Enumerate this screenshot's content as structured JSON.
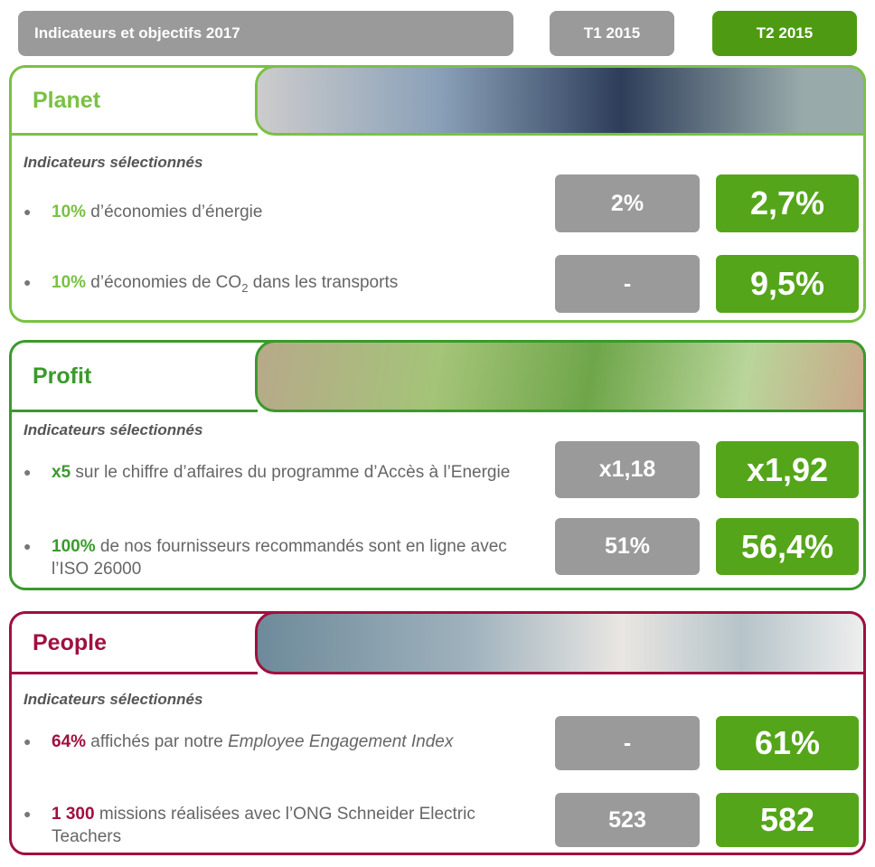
{
  "header": {
    "title": "Indicateurs et objectifs 2017",
    "col1": "T1 2015",
    "col2": "T2 2015"
  },
  "sections": [
    {
      "title": "Planet",
      "color": "#7ac143",
      "subtitle": "Indicateurs sélectionnés",
      "items": [
        {
          "parts": [
            {
              "text": "10%",
              "kind": "highlight"
            },
            {
              "text": " d’économies d’énergie"
            }
          ],
          "t1": "2%",
          "t2": "2,7%"
        },
        {
          "parts": [
            {
              "text": "10%",
              "kind": "highlight"
            },
            {
              "text": " d’économies de CO"
            },
            {
              "text": "2",
              "kind": "sub"
            },
            {
              "text": " dans les transports"
            }
          ],
          "t1": "-",
          "t2": "9,5%"
        }
      ]
    },
    {
      "title": "Profit",
      "color": "#3a9a2c",
      "subtitle": "Indicateurs sélectionnés",
      "items": [
        {
          "parts": [
            {
              "text": "x5",
              "kind": "highlight"
            },
            {
              "text": " sur le chiffre d’affaires du programme d’Accès à l’Energie"
            }
          ],
          "t1": "x1,18",
          "t2": "x1,92"
        },
        {
          "parts": [
            {
              "text": "100%",
              "kind": "highlight"
            },
            {
              "text": " de nos fournisseurs recommandés sont en ligne avec l’ISO 26000"
            }
          ],
          "t1": "51%",
          "t2": "56,4%"
        }
      ]
    },
    {
      "title": "People",
      "color": "#a0103e",
      "subtitle": "Indicateurs sélectionnés",
      "items": [
        {
          "parts": [
            {
              "text": "64%",
              "kind": "highlight"
            },
            {
              "text": " affichés par notre "
            },
            {
              "text": "Employee Engagement Index",
              "kind": "em"
            }
          ],
          "t1": "-",
          "t2": "61%"
        },
        {
          "parts": [
            {
              "text": "1 300",
              "kind": "highlight"
            },
            {
              "text": " missions réalisées avec  l’ONG Schneider Electric Teachers"
            }
          ],
          "t1": "523",
          "t2": "582"
        }
      ]
    }
  ]
}
